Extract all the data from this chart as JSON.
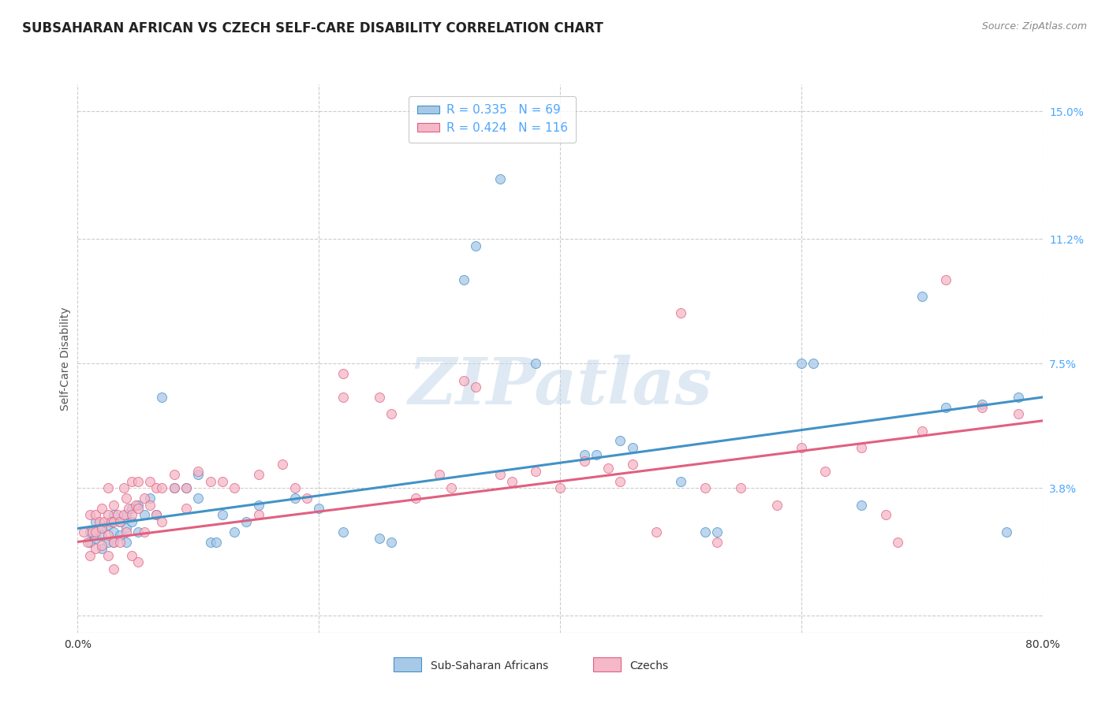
{
  "title": "SUBSAHARAN AFRICAN VS CZECH SELF-CARE DISABILITY CORRELATION CHART",
  "source": "Source: ZipAtlas.com",
  "ylabel": "Self-Care Disability",
  "xlim": [
    0.0,
    0.8
  ],
  "ylim": [
    -0.005,
    0.158
  ],
  "yticks": [
    0.0,
    0.038,
    0.075,
    0.112,
    0.15
  ],
  "ytick_labels": [
    "",
    "3.8%",
    "7.5%",
    "11.2%",
    "15.0%"
  ],
  "xticks": [
    0.0,
    0.2,
    0.4,
    0.6,
    0.8
  ],
  "xtick_labels": [
    "0.0%",
    "",
    "",
    "",
    "80.0%"
  ],
  "legend_R1": "R = 0.335",
  "legend_N1": "N = 69",
  "legend_R2": "R = 0.424",
  "legend_N2": "N = 116",
  "color_blue": "#a8c8e8",
  "color_pink": "#f4b8c8",
  "line_blue": "#4292c6",
  "line_pink": "#e06080",
  "watermark": "ZIPatlas",
  "label_blue": "Sub-Saharan Africans",
  "label_pink": "Czechs",
  "blue_points": [
    [
      0.01,
      0.025
    ],
    [
      0.01,
      0.022
    ],
    [
      0.015,
      0.028
    ],
    [
      0.015,
      0.023
    ],
    [
      0.02,
      0.026
    ],
    [
      0.02,
      0.024
    ],
    [
      0.02,
      0.02
    ],
    [
      0.025,
      0.027
    ],
    [
      0.025,
      0.022
    ],
    [
      0.03,
      0.03
    ],
    [
      0.03,
      0.025
    ],
    [
      0.03,
      0.022
    ],
    [
      0.035,
      0.028
    ],
    [
      0.035,
      0.024
    ],
    [
      0.04,
      0.03
    ],
    [
      0.04,
      0.026
    ],
    [
      0.04,
      0.022
    ],
    [
      0.045,
      0.032
    ],
    [
      0.045,
      0.028
    ],
    [
      0.05,
      0.033
    ],
    [
      0.05,
      0.025
    ],
    [
      0.055,
      0.03
    ],
    [
      0.06,
      0.035
    ],
    [
      0.065,
      0.03
    ],
    [
      0.07,
      0.065
    ],
    [
      0.08,
      0.038
    ],
    [
      0.09,
      0.038
    ],
    [
      0.1,
      0.042
    ],
    [
      0.1,
      0.035
    ],
    [
      0.11,
      0.022
    ],
    [
      0.115,
      0.022
    ],
    [
      0.12,
      0.03
    ],
    [
      0.13,
      0.025
    ],
    [
      0.14,
      0.028
    ],
    [
      0.15,
      0.033
    ],
    [
      0.18,
      0.035
    ],
    [
      0.2,
      0.032
    ],
    [
      0.22,
      0.025
    ],
    [
      0.25,
      0.023
    ],
    [
      0.26,
      0.022
    ],
    [
      0.32,
      0.1
    ],
    [
      0.33,
      0.11
    ],
    [
      0.35,
      0.13
    ],
    [
      0.38,
      0.075
    ],
    [
      0.42,
      0.048
    ],
    [
      0.43,
      0.048
    ],
    [
      0.45,
      0.052
    ],
    [
      0.46,
      0.05
    ],
    [
      0.5,
      0.04
    ],
    [
      0.52,
      0.025
    ],
    [
      0.53,
      0.025
    ],
    [
      0.6,
      0.075
    ],
    [
      0.61,
      0.075
    ],
    [
      0.65,
      0.033
    ],
    [
      0.7,
      0.095
    ],
    [
      0.72,
      0.062
    ],
    [
      0.75,
      0.063
    ],
    [
      0.77,
      0.025
    ],
    [
      0.78,
      0.065
    ]
  ],
  "pink_points": [
    [
      0.005,
      0.025
    ],
    [
      0.008,
      0.022
    ],
    [
      0.01,
      0.03
    ],
    [
      0.01,
      0.018
    ],
    [
      0.012,
      0.025
    ],
    [
      0.015,
      0.03
    ],
    [
      0.015,
      0.025
    ],
    [
      0.015,
      0.02
    ],
    [
      0.018,
      0.028
    ],
    [
      0.02,
      0.032
    ],
    [
      0.02,
      0.026
    ],
    [
      0.02,
      0.021
    ],
    [
      0.022,
      0.028
    ],
    [
      0.025,
      0.038
    ],
    [
      0.025,
      0.03
    ],
    [
      0.025,
      0.024
    ],
    [
      0.025,
      0.018
    ],
    [
      0.028,
      0.028
    ],
    [
      0.03,
      0.033
    ],
    [
      0.03,
      0.028
    ],
    [
      0.03,
      0.022
    ],
    [
      0.03,
      0.014
    ],
    [
      0.033,
      0.03
    ],
    [
      0.035,
      0.028
    ],
    [
      0.035,
      0.022
    ],
    [
      0.038,
      0.038
    ],
    [
      0.038,
      0.03
    ],
    [
      0.04,
      0.035
    ],
    [
      0.04,
      0.025
    ],
    [
      0.042,
      0.032
    ],
    [
      0.045,
      0.04
    ],
    [
      0.045,
      0.03
    ],
    [
      0.045,
      0.018
    ],
    [
      0.048,
      0.033
    ],
    [
      0.05,
      0.04
    ],
    [
      0.05,
      0.032
    ],
    [
      0.05,
      0.016
    ],
    [
      0.055,
      0.035
    ],
    [
      0.055,
      0.025
    ],
    [
      0.06,
      0.04
    ],
    [
      0.06,
      0.033
    ],
    [
      0.065,
      0.038
    ],
    [
      0.065,
      0.03
    ],
    [
      0.07,
      0.038
    ],
    [
      0.07,
      0.028
    ],
    [
      0.08,
      0.042
    ],
    [
      0.08,
      0.038
    ],
    [
      0.09,
      0.038
    ],
    [
      0.09,
      0.032
    ],
    [
      0.1,
      0.043
    ],
    [
      0.11,
      0.04
    ],
    [
      0.12,
      0.04
    ],
    [
      0.13,
      0.038
    ],
    [
      0.15,
      0.042
    ],
    [
      0.15,
      0.03
    ],
    [
      0.17,
      0.045
    ],
    [
      0.18,
      0.038
    ],
    [
      0.19,
      0.035
    ],
    [
      0.22,
      0.072
    ],
    [
      0.22,
      0.065
    ],
    [
      0.25,
      0.065
    ],
    [
      0.26,
      0.06
    ],
    [
      0.28,
      0.035
    ],
    [
      0.3,
      0.042
    ],
    [
      0.31,
      0.038
    ],
    [
      0.32,
      0.07
    ],
    [
      0.33,
      0.068
    ],
    [
      0.35,
      0.042
    ],
    [
      0.36,
      0.04
    ],
    [
      0.38,
      0.043
    ],
    [
      0.4,
      0.038
    ],
    [
      0.42,
      0.046
    ],
    [
      0.44,
      0.044
    ],
    [
      0.45,
      0.04
    ],
    [
      0.46,
      0.045
    ],
    [
      0.48,
      0.025
    ],
    [
      0.5,
      0.09
    ],
    [
      0.52,
      0.038
    ],
    [
      0.53,
      0.022
    ],
    [
      0.55,
      0.038
    ],
    [
      0.58,
      0.033
    ],
    [
      0.6,
      0.05
    ],
    [
      0.62,
      0.043
    ],
    [
      0.65,
      0.05
    ],
    [
      0.67,
      0.03
    ],
    [
      0.68,
      0.022
    ],
    [
      0.7,
      0.055
    ],
    [
      0.72,
      0.1
    ],
    [
      0.75,
      0.062
    ],
    [
      0.78,
      0.06
    ]
  ],
  "blue_line": [
    [
      0.0,
      0.026
    ],
    [
      0.8,
      0.065
    ]
  ],
  "pink_line": [
    [
      0.0,
      0.022
    ],
    [
      0.8,
      0.058
    ]
  ],
  "background_color": "#ffffff",
  "grid_color": "#cccccc",
  "title_fontsize": 12,
  "axis_fontsize": 10,
  "legend_fontsize": 11,
  "tick_color_blue": "#4da6ff",
  "tick_color_right": "#4da6ff"
}
